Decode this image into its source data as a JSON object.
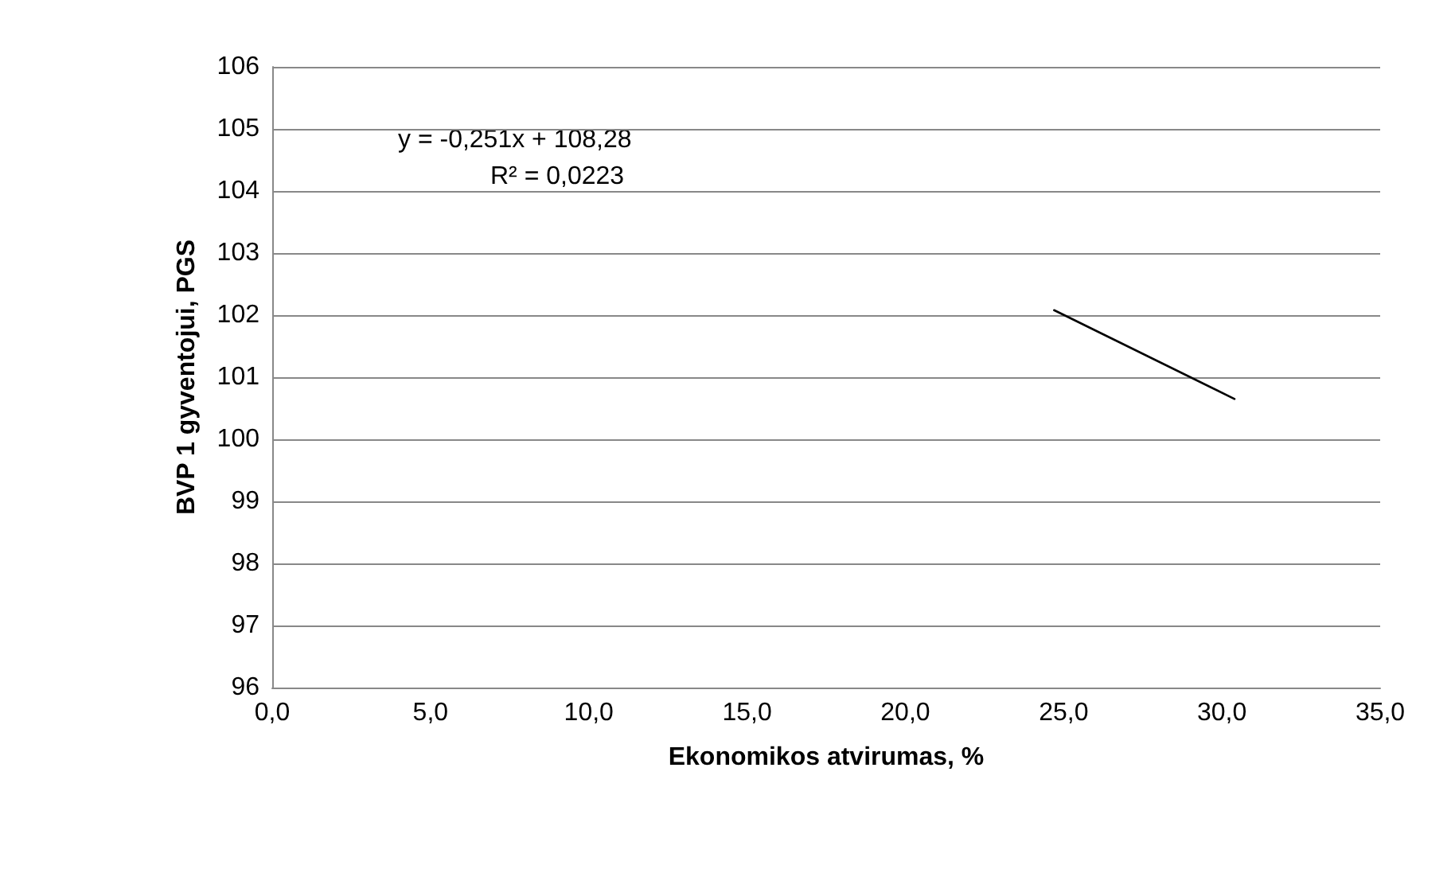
{
  "chart_data": {
    "type": "line",
    "xlabel": "Ekonomikos atvirumas, %",
    "ylabel": "BVP 1 gyventojui, PGS",
    "series": [
      {
        "color": "#000000",
        "x": [
          24.7,
          30.4
        ],
        "values": [
          102.08,
          100.65
        ]
      }
    ],
    "xlim": [
      0,
      35
    ],
    "xticks": [
      {
        "value": 0,
        "label": "0,0"
      },
      {
        "value": 5,
        "label": "5,0"
      },
      {
        "value": 10,
        "label": "10,0"
      },
      {
        "value": 15,
        "label": "15,0"
      },
      {
        "value": 20,
        "label": "20,0"
      },
      {
        "value": 25,
        "label": "25,0"
      },
      {
        "value": 30,
        "label": "30,0"
      },
      {
        "value": 35,
        "label": "35,0"
      }
    ],
    "ylim": [
      96,
      106
    ],
    "yticks": [
      96,
      97,
      98,
      99,
      100,
      101,
      102,
      103,
      104,
      105,
      106
    ],
    "grid": "y",
    "marker": "none",
    "line_style": "solid",
    "annotations": [
      "y = -0,251x + 108,28",
      "R² = 0,0223"
    ]
  }
}
